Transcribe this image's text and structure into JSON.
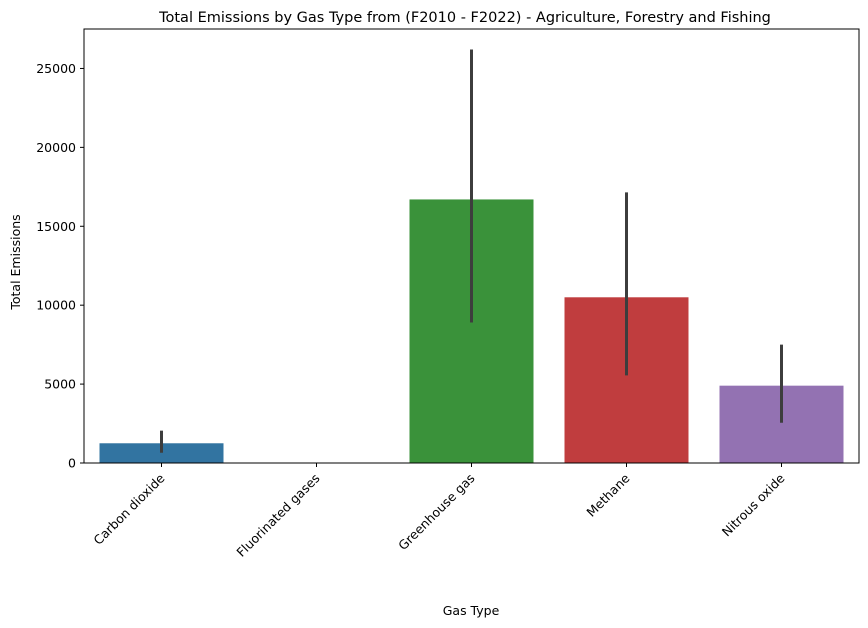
{
  "chart_data": {
    "type": "bar",
    "title": "Total Emissions by Gas Type from (F2010 - F2022) - Agriculture, Forestry and Fishing",
    "xlabel": "Gas Type",
    "ylabel": "Total Emissions",
    "categories": [
      "Carbon dioxide",
      "Fluorinated gases",
      "Greenhouse gas",
      "Methane",
      "Nitrous oxide"
    ],
    "values": [
      1250,
      15,
      16700,
      10500,
      4900
    ],
    "error_low": [
      650,
      5,
      8900,
      5550,
      2550
    ],
    "error_high": [
      2050,
      25,
      26200,
      17150,
      7500
    ],
    "colors": [
      "#3274a1",
      "#e1812c",
      "#3a923a",
      "#c03d3e",
      "#9372b2"
    ],
    "yticks": [
      0,
      5000,
      10000,
      15000,
      20000,
      25000
    ],
    "ylim": [
      0,
      27500
    ],
    "grid": false,
    "legend": "none"
  }
}
